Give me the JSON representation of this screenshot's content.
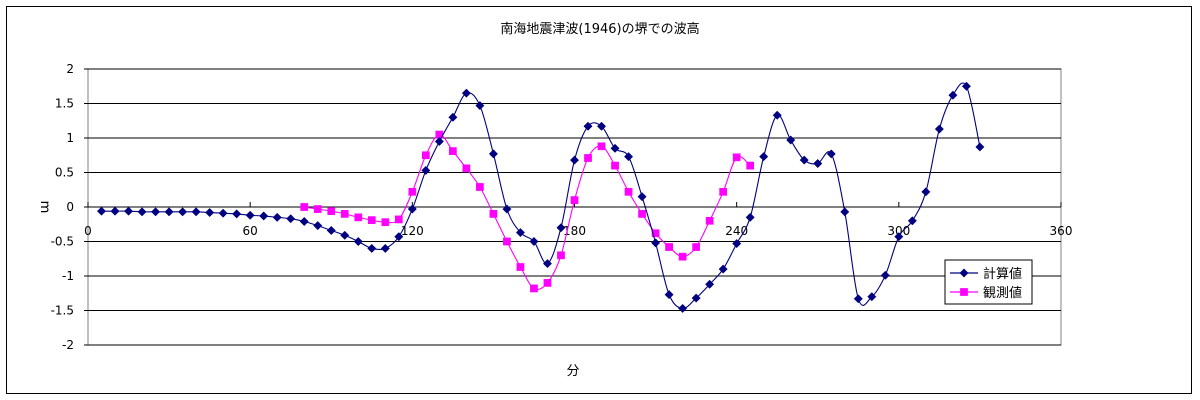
{
  "chart_data": {
    "type": "line",
    "title": "南海地震津波(1946)の堺での波高",
    "xlabel": "分",
    "ylabel": "m",
    "xlim": [
      0,
      360
    ],
    "ylim": [
      -2,
      2
    ],
    "x_ticks": [
      0,
      60,
      120,
      180,
      240,
      300,
      360
    ],
    "y_ticks": [
      2,
      1.5,
      1,
      0.5,
      0,
      -0.5,
      -1,
      -1.5,
      -2
    ],
    "y_tick_labels": [
      "2",
      "1.5",
      "1",
      "0.5",
      "0",
      "-0.5",
      "-1",
      "-1.5",
      "-2"
    ],
    "grid": "horizontal",
    "legend_position": "right",
    "series": [
      {
        "name": "計算値",
        "color": "#000080",
        "marker": "diamond",
        "points": [
          [
            5,
            -0.06
          ],
          [
            10,
            -0.06
          ],
          [
            15,
            -0.06
          ],
          [
            20,
            -0.07
          ],
          [
            25,
            -0.07
          ],
          [
            30,
            -0.07
          ],
          [
            35,
            -0.07
          ],
          [
            40,
            -0.07
          ],
          [
            45,
            -0.08
          ],
          [
            50,
            -0.09
          ],
          [
            55,
            -0.1
          ],
          [
            60,
            -0.12
          ],
          [
            65,
            -0.13
          ],
          [
            70,
            -0.15
          ],
          [
            75,
            -0.17
          ],
          [
            80,
            -0.21
          ],
          [
            85,
            -0.27
          ],
          [
            90,
            -0.34
          ],
          [
            95,
            -0.41
          ],
          [
            100,
            -0.5
          ],
          [
            105,
            -0.6
          ],
          [
            110,
            -0.6
          ],
          [
            115,
            -0.43
          ],
          [
            120,
            -0.03
          ],
          [
            125,
            0.53
          ],
          [
            130,
            0.95
          ],
          [
            135,
            1.3
          ],
          [
            140,
            1.65
          ],
          [
            145,
            1.47
          ],
          [
            150,
            0.77
          ],
          [
            155,
            -0.03
          ],
          [
            160,
            -0.37
          ],
          [
            165,
            -0.5
          ],
          [
            170,
            -0.82
          ],
          [
            175,
            -0.3
          ],
          [
            180,
            0.68
          ],
          [
            185,
            1.17
          ],
          [
            190,
            1.17
          ],
          [
            195,
            0.85
          ],
          [
            200,
            0.73
          ],
          [
            205,
            0.15
          ],
          [
            210,
            -0.52
          ],
          [
            215,
            -1.27
          ],
          [
            220,
            -1.47
          ],
          [
            225,
            -1.32
          ],
          [
            230,
            -1.12
          ],
          [
            235,
            -0.9
          ],
          [
            240,
            -0.53
          ],
          [
            245,
            -0.15
          ],
          [
            250,
            0.73
          ],
          [
            255,
            1.33
          ],
          [
            260,
            0.97
          ],
          [
            265,
            0.68
          ],
          [
            270,
            0.63
          ],
          [
            275,
            0.77
          ],
          [
            280,
            -0.07
          ],
          [
            285,
            -1.33
          ],
          [
            290,
            -1.3
          ],
          [
            295,
            -0.99
          ],
          [
            300,
            -0.43
          ],
          [
            305,
            -0.2
          ],
          [
            310,
            0.22
          ],
          [
            315,
            1.13
          ],
          [
            320,
            1.62
          ],
          [
            325,
            1.75
          ],
          [
            330,
            0.87
          ]
        ]
      },
      {
        "name": "観測値",
        "color": "#ff00ff",
        "marker": "square",
        "points": [
          [
            80,
            0
          ],
          [
            85,
            -0.03
          ],
          [
            90,
            -0.06
          ],
          [
            95,
            -0.1
          ],
          [
            100,
            -0.15
          ],
          [
            105,
            -0.19
          ],
          [
            110,
            -0.22
          ],
          [
            115,
            -0.18
          ],
          [
            120,
            0.22
          ],
          [
            125,
            0.75
          ],
          [
            130,
            1.05
          ],
          [
            135,
            0.81
          ],
          [
            140,
            0.56
          ],
          [
            145,
            0.29
          ],
          [
            150,
            -0.1
          ],
          [
            155,
            -0.5
          ],
          [
            160,
            -0.87
          ],
          [
            165,
            -1.18
          ],
          [
            170,
            -1.1
          ],
          [
            175,
            -0.7
          ],
          [
            180,
            0.1
          ],
          [
            185,
            0.71
          ],
          [
            190,
            0.88
          ],
          [
            195,
            0.6
          ],
          [
            200,
            0.22
          ],
          [
            205,
            -0.1
          ],
          [
            210,
            -0.38
          ],
          [
            215,
            -0.58
          ],
          [
            220,
            -0.72
          ],
          [
            225,
            -0.58
          ],
          [
            230,
            -0.2
          ],
          [
            235,
            0.22
          ],
          [
            240,
            0.72
          ],
          [
            245,
            0.6
          ]
        ]
      }
    ]
  }
}
